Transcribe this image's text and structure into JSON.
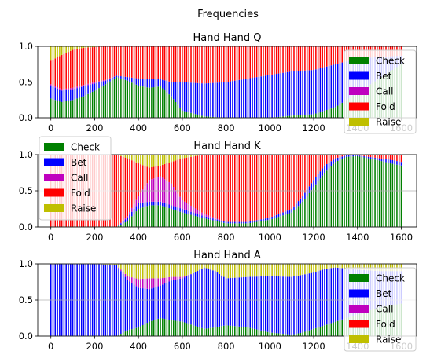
{
  "figure": {
    "title": "Frequencies"
  },
  "colors": {
    "Check": "#008000",
    "Bet": "#0000ff",
    "Call": "#bf00bf",
    "Fold": "#ff0000",
    "Raise": "#bfbf00"
  },
  "chart_data": [
    {
      "type": "bar",
      "stacked": true,
      "title": "Hand Hand Q",
      "xlim": [
        -60,
        1670
      ],
      "ylim": [
        0,
        1
      ],
      "xticks": [
        0,
        200,
        400,
        600,
        800,
        1000,
        1200,
        1400,
        1600
      ],
      "yticks": [
        0.0,
        0.5,
        1.0
      ],
      "grid": "horizontal",
      "legend": {
        "position": "right",
        "entries": [
          "Check",
          "Bet",
          "Call",
          "Fold",
          "Raise"
        ]
      },
      "bar_x_range": [
        0,
        1600
      ],
      "bar_step": 10,
      "series_order": [
        "Check",
        "Bet",
        "Call",
        "Fold",
        "Raise"
      ],
      "keyframes": {
        "x": [
          0,
          50,
          100,
          150,
          200,
          250,
          300,
          350,
          400,
          450,
          500,
          550,
          600,
          700,
          800,
          900,
          1000,
          1100,
          1200,
          1300,
          1400,
          1500,
          1600
        ],
        "Check": [
          0.27,
          0.22,
          0.25,
          0.3,
          0.38,
          0.47,
          0.57,
          0.52,
          0.45,
          0.42,
          0.44,
          0.3,
          0.1,
          0.02,
          0.0,
          0.0,
          0.0,
          0.03,
          0.05,
          0.15,
          0.35,
          0.55,
          0.75
        ],
        "Bet": [
          0.18,
          0.16,
          0.15,
          0.14,
          0.1,
          0.05,
          0.02,
          0.05,
          0.1,
          0.12,
          0.1,
          0.2,
          0.4,
          0.46,
          0.5,
          0.55,
          0.6,
          0.62,
          0.62,
          0.6,
          0.48,
          0.3,
          0.12
        ],
        "Call": [
          0.02,
          0.02,
          0.02,
          0.02,
          0.02,
          0.01,
          0.0,
          0.0,
          0.0,
          0.0,
          0.0,
          0.0,
          0.0,
          0.0,
          0.0,
          0.0,
          0.0,
          0.0,
          0.0,
          0.0,
          0.0,
          0.0,
          0.0
        ],
        "Raise": [
          0.2,
          0.12,
          0.05,
          0.02,
          0.01,
          0.0,
          0.0,
          0.0,
          0.0,
          0.0,
          0.0,
          0.0,
          0.0,
          0.0,
          0.0,
          0.0,
          0.0,
          0.0,
          0.0,
          0.0,
          0.0,
          0.0,
          0.0
        ]
      }
    },
    {
      "type": "bar",
      "stacked": true,
      "title": "Hand Hand K",
      "xlim": [
        -60,
        1670
      ],
      "ylim": [
        0,
        1
      ],
      "xticks": [
        0,
        200,
        400,
        600,
        800,
        1000,
        1200,
        1400,
        1600
      ],
      "yticks": [
        0.0,
        0.5,
        1.0
      ],
      "grid": "horizontal",
      "legend": {
        "position": "top-left",
        "entries": [
          "Check",
          "Bet",
          "Call",
          "Fold",
          "Raise"
        ]
      },
      "bar_x_range": [
        0,
        1600
      ],
      "bar_step": 10,
      "series_order": [
        "Check",
        "Bet",
        "Call",
        "Fold",
        "Raise"
      ],
      "keyframes": {
        "x": [
          0,
          100,
          200,
          300,
          350,
          400,
          450,
          500,
          550,
          600,
          700,
          800,
          900,
          1000,
          1100,
          1150,
          1200,
          1250,
          1300,
          1350,
          1400,
          1450,
          1500,
          1550,
          1600
        ],
        "Check": [
          0.0,
          0.0,
          0.0,
          0.0,
          0.08,
          0.25,
          0.3,
          0.3,
          0.25,
          0.2,
          0.12,
          0.05,
          0.05,
          0.1,
          0.2,
          0.35,
          0.55,
          0.75,
          0.9,
          0.97,
          0.98,
          0.95,
          0.92,
          0.88,
          0.85
        ],
        "Bet": [
          0.0,
          0.0,
          0.0,
          0.0,
          0.05,
          0.08,
          0.05,
          0.05,
          0.05,
          0.05,
          0.03,
          0.02,
          0.02,
          0.03,
          0.05,
          0.08,
          0.1,
          0.1,
          0.05,
          0.02,
          0.01,
          0.02,
          0.03,
          0.05,
          0.05
        ],
        "Call": [
          0.0,
          0.0,
          0.0,
          0.0,
          0.02,
          0.1,
          0.3,
          0.35,
          0.3,
          0.12,
          0.03,
          0.0,
          0.0,
          0.0,
          0.0,
          0.0,
          0.0,
          0.0,
          0.0,
          0.0,
          0.0,
          0.0,
          0.0,
          0.0,
          0.0
        ],
        "Raise": [
          0.0,
          0.0,
          0.0,
          0.0,
          0.05,
          0.12,
          0.18,
          0.15,
          0.1,
          0.05,
          0.0,
          0.0,
          0.0,
          0.0,
          0.0,
          0.0,
          0.0,
          0.0,
          0.0,
          0.0,
          0.0,
          0.0,
          0.0,
          0.0,
          0.0
        ]
      }
    },
    {
      "type": "bar",
      "stacked": true,
      "title": "Hand Hand A",
      "xlim": [
        -60,
        1670
      ],
      "ylim": [
        0,
        1
      ],
      "xticks": [
        0,
        200,
        400,
        600,
        800,
        1000,
        1200,
        1400,
        1600
      ],
      "yticks": [
        0.0,
        0.5,
        1.0
      ],
      "grid": "horizontal",
      "legend": {
        "position": "right",
        "entries": [
          "Check",
          "Bet",
          "Call",
          "Fold",
          "Raise"
        ]
      },
      "bar_x_range": [
        0,
        1600
      ],
      "bar_step": 10,
      "series_order": [
        "Check",
        "Bet",
        "Call",
        "Fold",
        "Raise"
      ],
      "keyframes": {
        "x": [
          0,
          100,
          200,
          300,
          350,
          400,
          450,
          500,
          550,
          600,
          650,
          700,
          750,
          800,
          900,
          1000,
          1100,
          1150,
          1200,
          1250,
          1300,
          1400,
          1500,
          1600
        ],
        "Check": [
          0.0,
          0.0,
          0.0,
          0.0,
          0.08,
          0.12,
          0.2,
          0.25,
          0.22,
          0.2,
          0.15,
          0.1,
          0.12,
          0.15,
          0.12,
          0.05,
          0.02,
          0.05,
          0.1,
          0.15,
          0.2,
          0.3,
          0.4,
          0.45
        ],
        "Bet": [
          1.0,
          1.0,
          1.0,
          0.98,
          0.7,
          0.55,
          0.45,
          0.45,
          0.55,
          0.6,
          0.72,
          0.85,
          0.78,
          0.65,
          0.7,
          0.78,
          0.8,
          0.8,
          0.78,
          0.78,
          0.75,
          0.62,
          0.5,
          0.45
        ],
        "Call": [
          0.0,
          0.0,
          0.0,
          0.0,
          0.05,
          0.12,
          0.15,
          0.1,
          0.05,
          0.02,
          0.0,
          0.0,
          0.0,
          0.0,
          0.0,
          0.0,
          0.0,
          0.0,
          0.0,
          0.0,
          0.0,
          0.0,
          0.0,
          0.0
        ],
        "Raise": [
          0.0,
          0.0,
          0.0,
          0.02,
          0.17,
          0.21,
          0.2,
          0.2,
          0.18,
          0.18,
          0.13,
          0.05,
          0.1,
          0.2,
          0.18,
          0.17,
          0.18,
          0.15,
          0.12,
          0.07,
          0.05,
          0.08,
          0.1,
          0.1
        ]
      }
    }
  ]
}
